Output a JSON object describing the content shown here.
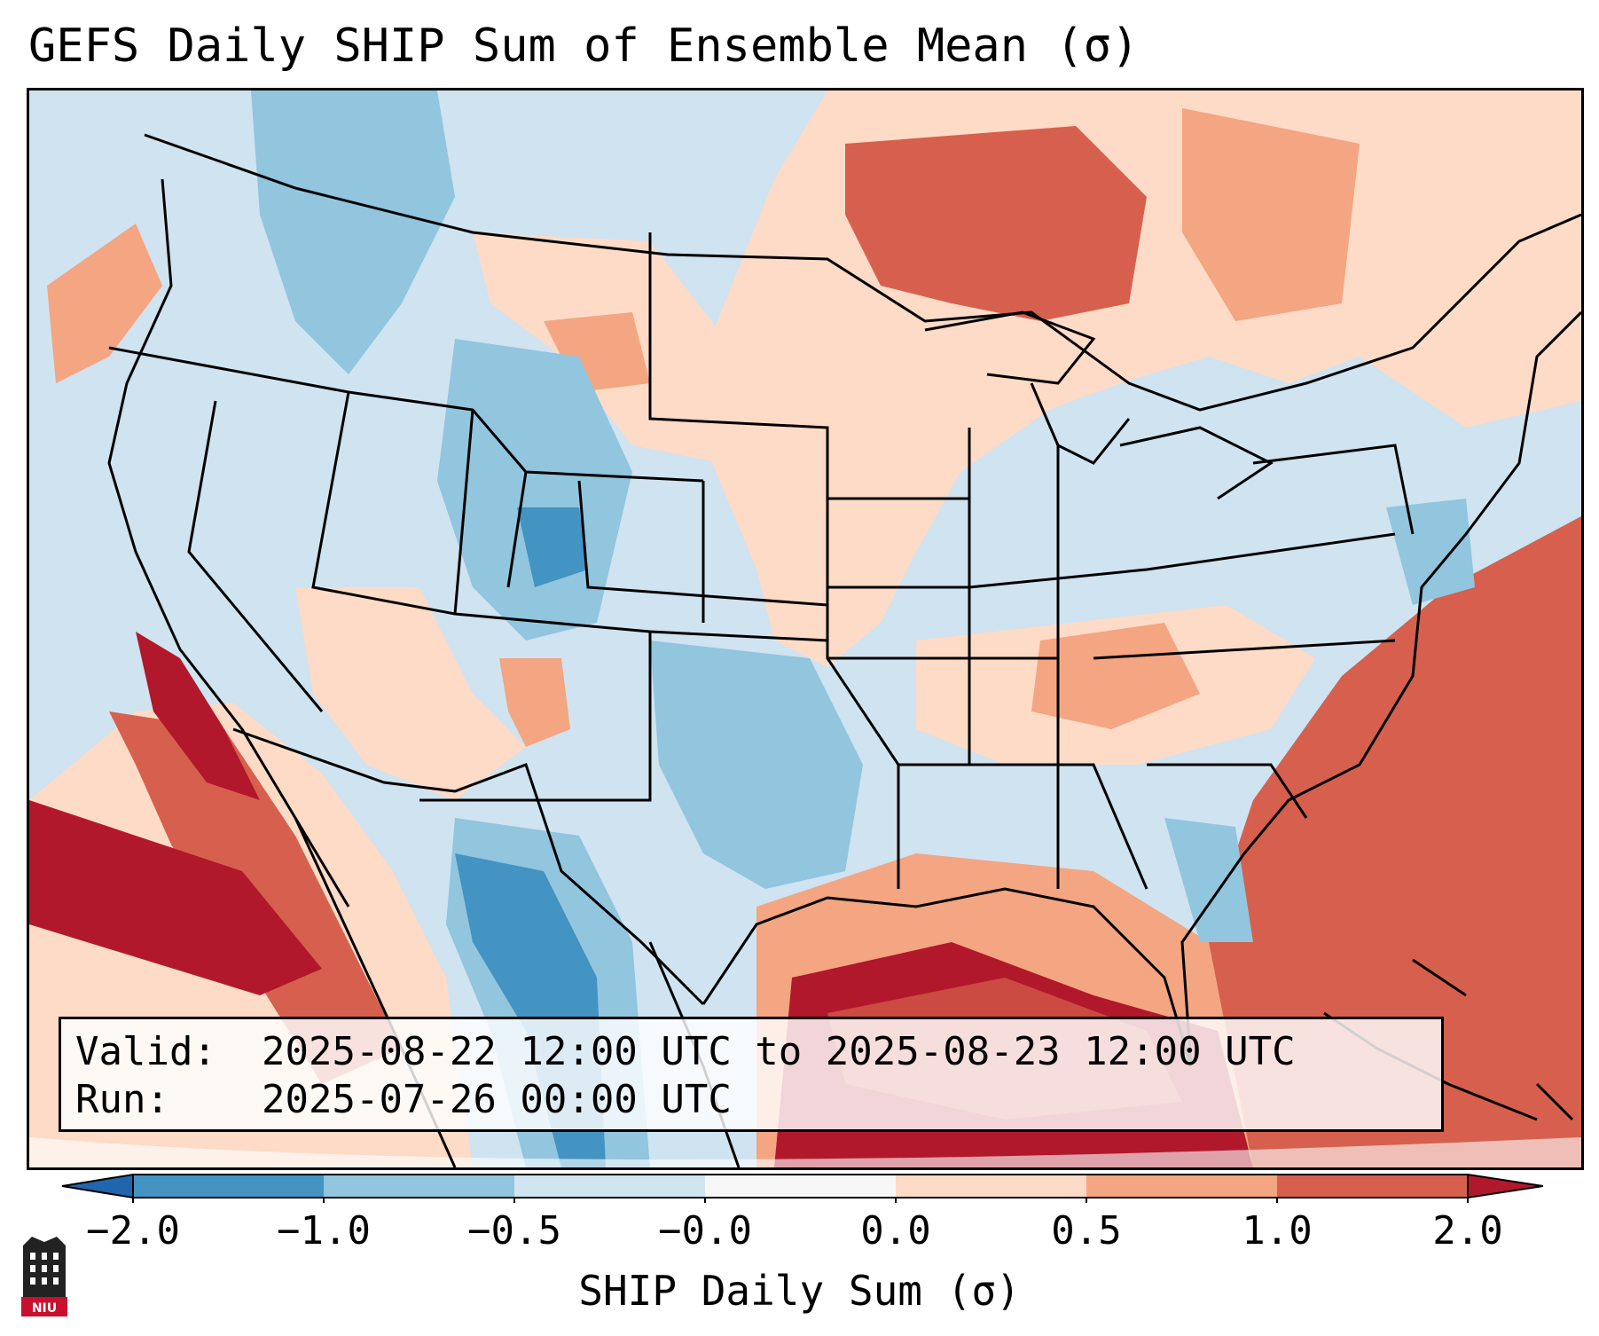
{
  "title": "GEFS Daily SHIP Sum of Ensemble Mean (σ)",
  "info": {
    "valid_label": "Valid:",
    "valid_value": "2025-08-22 12:00 UTC to 2025-08-23 12:00 UTC",
    "run_label": "Run:",
    "run_value": "2025-07-26 00:00 UTC"
  },
  "colorbar": {
    "label": "SHIP Daily Sum (σ)",
    "ticks": [
      "−2.0",
      "−1.0",
      "−0.5",
      "−0.0",
      "0.0",
      "0.5",
      "1.0",
      "2.0"
    ],
    "colors": [
      "#4393c3",
      "#92c5de",
      "#d1e5f0",
      "#f7f7f7",
      "#fddbc7",
      "#f4a582",
      "#d6604d",
      "#b2182b"
    ]
  },
  "logo": {
    "text": "NIU"
  }
}
